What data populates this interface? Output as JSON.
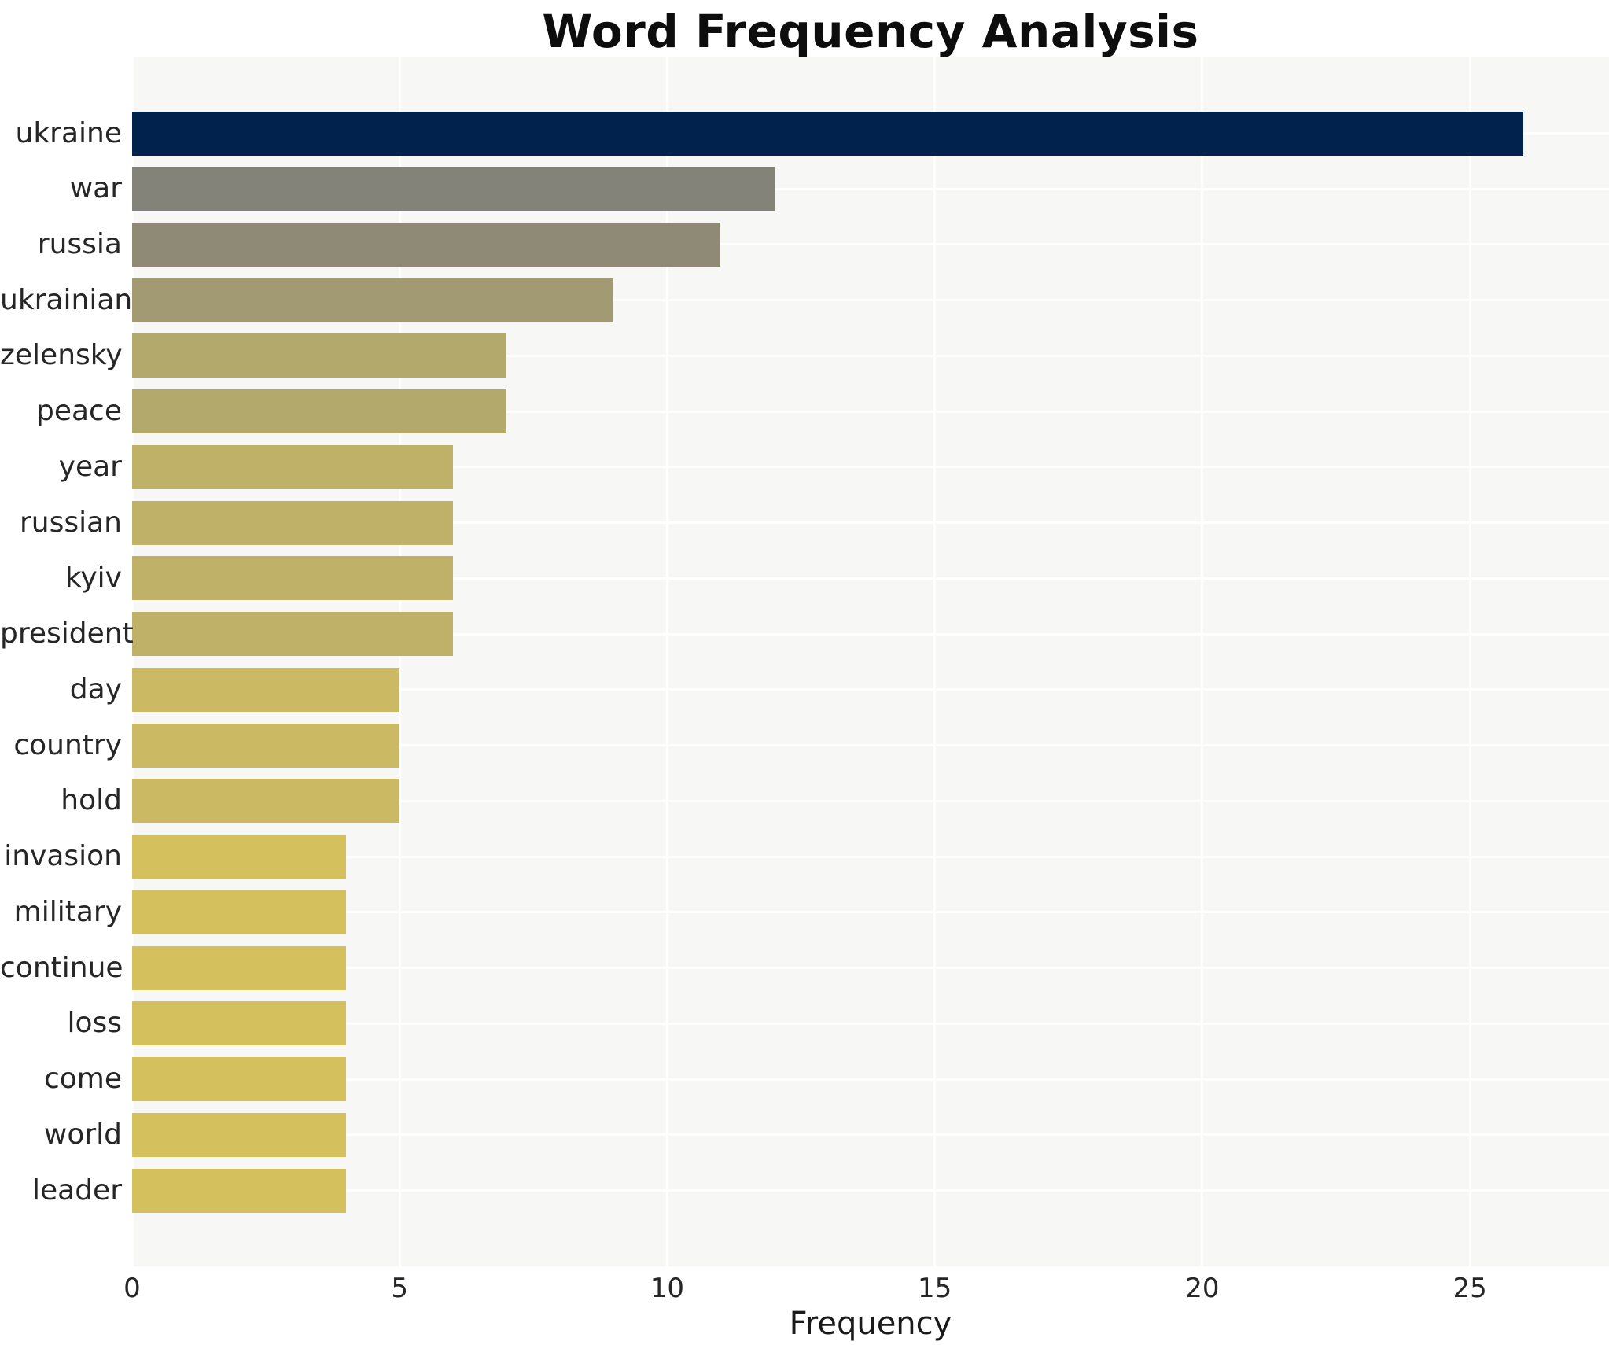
{
  "chart_data": {
    "type": "bar",
    "orientation": "horizontal",
    "title": "Word Frequency Analysis",
    "xlabel": "Frequency",
    "ylabel": "",
    "xlim": [
      0,
      27.6
    ],
    "x_ticks": [
      0,
      5,
      10,
      15,
      20,
      25
    ],
    "grid": true,
    "legend": "none",
    "plot_bg_color": "#f7f7f5",
    "grid_color": "#ffffff",
    "tick_label_color": "#262626",
    "title_color": "#0d0d0d",
    "categories": [
      "ukraine",
      "war",
      "russia",
      "ukrainian",
      "zelensky",
      "peace",
      "year",
      "russian",
      "kyiv",
      "president",
      "day",
      "country",
      "hold",
      "invasion",
      "military",
      "continue",
      "loss",
      "come",
      "world",
      "leader"
    ],
    "values": [
      26,
      12,
      11,
      9,
      7,
      7,
      6,
      6,
      6,
      6,
      5,
      5,
      5,
      4,
      4,
      4,
      4,
      4,
      4,
      4
    ],
    "bar_colors": [
      "#01224d",
      "#848379",
      "#8f8a76",
      "#a19a72",
      "#b4a96d",
      "#b4a96d",
      "#c0b169",
      "#c0b169",
      "#c0b169",
      "#c0b169",
      "#cbb963",
      "#cbb963",
      "#cbb963",
      "#d4c05d",
      "#d4c05d",
      "#d4c05d",
      "#d4c05d",
      "#d4c05d",
      "#d4c05d",
      "#d4c05d"
    ]
  }
}
